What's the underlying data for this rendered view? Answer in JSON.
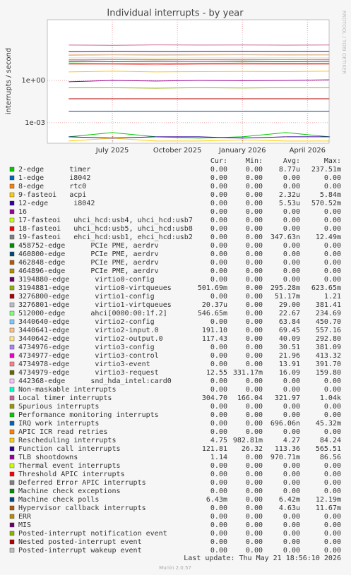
{
  "chart_data": {
    "type": "line",
    "title": "Individual interrupts - by year",
    "y_label": "interrupts / second",
    "side_note": "RRDTOOL / TOBI OETIKER",
    "log_y": true,
    "grid": true,
    "x": [
      "2025-05",
      "2025-07",
      "2025-09",
      "2025-11",
      "2026-01",
      "2026-03",
      "2026-05"
    ],
    "xlim": [
      "2025-04",
      "2026-05"
    ],
    "xticks": [
      {
        "value": "2025-07",
        "label": "July 2025"
      },
      {
        "value": "2025-10",
        "label": "October 2025"
      },
      {
        "value": "2026-01",
        "label": "January 2026"
      },
      {
        "value": "2026-04",
        "label": "April 2026"
      }
    ],
    "ylim": [
      3.5e-05,
      20000
    ],
    "yticks": [
      {
        "value": 0.001,
        "label": "1e-03"
      },
      {
        "value": 1,
        "label": "1e+00"
      }
    ],
    "legend_headers": [
      "Cur:",
      "Min:",
      "Avg:",
      "Max:"
    ],
    "series": [
      {
        "name": "2-edge      timer",
        "color": "#00cc00",
        "values": [
          0.0001,
          0.0002,
          0.0001,
          8e-05,
          0.0001,
          0.0002,
          0.0001
        ],
        "stats": [
          "0.00",
          "0.00",
          "8.77u",
          "237.51m"
        ]
      },
      {
        "name": "1-edge      i8042",
        "color": "#0066b3",
        "values": [
          null,
          null,
          null,
          null,
          null,
          null,
          null
        ],
        "stats": [
          "0.00",
          "0.00",
          "0.00",
          "0.00"
        ]
      },
      {
        "name": "8-edge      rtc0",
        "color": "#ff8000",
        "values": [
          null,
          null,
          null,
          null,
          null,
          null,
          null
        ],
        "stats": [
          "0.00",
          "0.00",
          "0.00",
          "0.00"
        ]
      },
      {
        "name": "9-fasteoi   acpi",
        "color": "#ffcc00",
        "values": [
          5e-05,
          8e-05,
          5e-05,
          5e-05,
          6e-05,
          5e-05,
          5e-05
        ],
        "stats": [
          "0.00",
          "0.00",
          "2.32u",
          "5.84m"
        ]
      },
      {
        "name": "12-edge      i8042",
        "color": "#330099",
        "values": [
          0.0001,
          8e-05,
          0.0001,
          0.0001,
          8e-05,
          0.0001,
          0.0001
        ],
        "stats": [
          "0.00",
          "0.00",
          "5.53u",
          "570.52m"
        ]
      },
      {
        "name": "16",
        "color": "#990099",
        "values": [
          null,
          null,
          null,
          null,
          null,
          null,
          null
        ],
        "stats": [
          "0.00",
          "0.00",
          "0.00",
          "0.00"
        ]
      },
      {
        "name": "17-fasteoi   uhci_hcd:usb4, uhci_hcd:usb7",
        "color": "#ccff00",
        "values": [
          null,
          null,
          null,
          null,
          null,
          null,
          null
        ],
        "stats": [
          "0.00",
          "0.00",
          "0.00",
          "0.00"
        ]
      },
      {
        "name": "18-fasteoi   uhci_hcd:usb5, uhci_hcd:usb8",
        "color": "#ff0000",
        "values": [
          null,
          null,
          null,
          null,
          null,
          null,
          null
        ],
        "stats": [
          "0.00",
          "0.00",
          "0.00",
          "0.00"
        ]
      },
      {
        "name": "19-fasteoi   ehci_hcd:usb1, ehci_hcd:usb2",
        "color": "#808080",
        "values": [
          null,
          5e-05,
          null,
          null,
          5e-05,
          null,
          null
        ],
        "stats": [
          "0.00",
          "0.00",
          "347.63n",
          "12.49m"
        ]
      },
      {
        "name": "458752-edge      PCIe PME, aerdrv",
        "color": "#008f00",
        "values": [
          null,
          null,
          null,
          null,
          null,
          null,
          null
        ],
        "stats": [
          "0.00",
          "0.00",
          "0.00",
          "0.00"
        ]
      },
      {
        "name": "460800-edge      PCIe PME, aerdrv",
        "color": "#00487d",
        "values": [
          null,
          null,
          null,
          null,
          null,
          null,
          null
        ],
        "stats": [
          "0.00",
          "0.00",
          "0.00",
          "0.00"
        ]
      },
      {
        "name": "462848-edge      PCIe PME, aerdrv",
        "color": "#b35a00",
        "values": [
          null,
          null,
          null,
          null,
          null,
          null,
          null
        ],
        "stats": [
          "0.00",
          "0.00",
          "0.00",
          "0.00"
        ]
      },
      {
        "name": "464896-edge      PCIe PME, aerdrv",
        "color": "#b38f00",
        "values": [
          null,
          null,
          null,
          null,
          null,
          null,
          null
        ],
        "stats": [
          "0.00",
          "0.00",
          "0.00",
          "0.00"
        ]
      },
      {
        "name": "3194880-edge      virtio0-config",
        "color": "#6b006b",
        "values": [
          null,
          null,
          null,
          null,
          null,
          null,
          null
        ],
        "stats": [
          "0.00",
          "0.00",
          "0.00",
          "0.00"
        ]
      },
      {
        "name": "3194881-edge      virtio0-virtqueues",
        "color": "#8fb300",
        "values": [
          0.3,
          0.3,
          0.28,
          0.3,
          0.29,
          0.3,
          0.3
        ],
        "stats": [
          "501.69m",
          "0.00",
          "295.28m",
          "623.65m"
        ]
      },
      {
        "name": "3276800-edge      virtio1-config",
        "color": "#b30000",
        "values": [
          0.05,
          0.05,
          0.05,
          0.05,
          0.05,
          0.05,
          0.05
        ],
        "stats": [
          "0.00",
          "0.00",
          "51.17m",
          "1.21"
        ]
      },
      {
        "name": "3276801-edge      virtio1-virtqueues",
        "color": "#bebebe",
        "values": [
          25,
          30,
          28,
          30,
          29,
          30,
          29
        ],
        "stats": [
          "20.37u",
          "0.00",
          "29.00",
          "381.41"
        ]
      },
      {
        "name": "512000-edge      ahci[0000:00:1f.2]",
        "color": "#80ff80",
        "values": [
          20,
          22,
          23,
          22,
          24,
          22,
          23
        ],
        "stats": [
          "546.65m",
          "0.00",
          "22.67",
          "234.69"
        ]
      },
      {
        "name": "3440640-edge      virtio2-config",
        "color": "#80c9ff",
        "values": [
          60,
          65,
          62,
          64,
          66,
          63,
          64
        ],
        "stats": [
          "0.00",
          "0.00",
          "63.84",
          "450.70"
        ]
      },
      {
        "name": "3440641-edge      virtio2-input.0",
        "color": "#ffc080",
        "values": [
          70,
          68,
          70,
          69,
          70,
          68,
          69
        ],
        "stats": [
          "191.10",
          "0.00",
          "69.45",
          "557.16"
        ]
      },
      {
        "name": "3440642-edge      virtio2-output.0",
        "color": "#ffe680",
        "values": [
          40,
          41,
          39,
          40,
          40,
          41,
          40
        ],
        "stats": [
          "117.43",
          "0.00",
          "40.09",
          "292.80"
        ]
      },
      {
        "name": "4734976-edge      virtio3-config",
        "color": "#aa80ff",
        "values": [
          30,
          31,
          30,
          30,
          31,
          30,
          31
        ],
        "stats": [
          "0.00",
          "0.00",
          "30.51",
          "381.09"
        ]
      },
      {
        "name": "4734977-edge      virtio3-control",
        "color": "#ee00cc",
        "values": [
          22,
          21,
          22,
          22,
          22,
          21,
          22
        ],
        "stats": [
          "0.00",
          "0.00",
          "21.96",
          "413.32"
        ]
      },
      {
        "name": "4734978-edge      virtio3-event",
        "color": "#ff8080",
        "values": [
          14,
          14,
          13,
          14,
          14,
          14,
          14
        ],
        "stats": [
          "0.00",
          "0.00",
          "13.91",
          "391.70"
        ]
      },
      {
        "name": "4734979-edge      virtio3-request",
        "color": "#666600",
        "values": [
          16,
          15,
          16,
          16,
          17,
          16,
          16
        ],
        "stats": [
          "12.55",
          "331.17m",
          "16.09",
          "159.80"
        ]
      },
      {
        "name": "442368-edge      snd_hda_intel:card0",
        "color": "#ffbfff",
        "values": [
          null,
          null,
          null,
          null,
          null,
          null,
          null
        ],
        "stats": [
          "0.00",
          "0.00",
          "0.00",
          "0.00"
        ]
      },
      {
        "name": "Non-maskable interrupts",
        "color": "#00ffcc",
        "values": [
          null,
          null,
          null,
          null,
          null,
          null,
          null
        ],
        "stats": [
          "0.00",
          "0.00",
          "0.00",
          "0.00"
        ]
      },
      {
        "name": "Local timer interrupts",
        "color": "#cc6699",
        "values": [
          320,
          310,
          330,
          320,
          325,
          315,
          322
        ],
        "stats": [
          "304.70",
          "166.04",
          "321.97",
          "1.04k"
        ]
      },
      {
        "name": "Spurious interrupts",
        "color": "#999900",
        "values": [
          null,
          null,
          null,
          null,
          null,
          null,
          null
        ],
        "stats": [
          "0.00",
          "0.00",
          "0.00",
          "0.00"
        ]
      },
      {
        "name": "Performance monitoring interrupts",
        "color": "#00cc00",
        "values": [
          null,
          null,
          null,
          null,
          null,
          null,
          null
        ],
        "stats": [
          "0.00",
          "0.00",
          "0.00",
          "0.00"
        ]
      },
      {
        "name": "IRQ work interrupts",
        "color": "#0066b3",
        "values": [
          0.0001,
          null,
          0.0001,
          null,
          0.0001,
          null,
          0.0001
        ],
        "stats": [
          "0.00",
          "0.00",
          "696.06n",
          "45.32m"
        ]
      },
      {
        "name": "APIC ICR read retries",
        "color": "#ff8000",
        "values": [
          null,
          null,
          null,
          null,
          null,
          null,
          null
        ],
        "stats": [
          "0.00",
          "0.00",
          "0.00",
          "0.00"
        ]
      },
      {
        "name": "Rescheduling interrupts",
        "color": "#ffcc00",
        "values": [
          4,
          4.5,
          4,
          4.2,
          4.3,
          4.2,
          4.5
        ],
        "stats": [
          "4.75",
          "982.81m",
          "4.27",
          "84.24"
        ]
      },
      {
        "name": "Function call interrupts",
        "color": "#330099",
        "values": [
          110,
          115,
          112,
          113,
          114,
          113,
          116
        ],
        "stats": [
          "121.81",
          "26.32",
          "113.36",
          "565.51"
        ]
      },
      {
        "name": "TLB shootdowns",
        "color": "#990099",
        "values": [
          0.8,
          1,
          0.9,
          1,
          0.95,
          1,
          1.1
        ],
        "stats": [
          "1.14",
          "0.00",
          "970.71m",
          "86.56"
        ]
      },
      {
        "name": "Thermal event interrupts",
        "color": "#ccff00",
        "values": [
          null,
          null,
          null,
          null,
          null,
          null,
          null
        ],
        "stats": [
          "0.00",
          "0.00",
          "0.00",
          "0.00"
        ]
      },
      {
        "name": "Threshold APIC interrupts",
        "color": "#ff0000",
        "values": [
          null,
          null,
          null,
          null,
          null,
          null,
          null
        ],
        "stats": [
          "0.00",
          "0.00",
          "0.00",
          "0.00"
        ]
      },
      {
        "name": "Deferred Error APIC interrupts",
        "color": "#808080",
        "values": [
          null,
          null,
          null,
          null,
          null,
          null,
          null
        ],
        "stats": [
          "0.00",
          "0.00",
          "0.00",
          "0.00"
        ]
      },
      {
        "name": "Machine check exceptions",
        "color": "#008f00",
        "values": [
          null,
          null,
          null,
          null,
          null,
          null,
          null
        ],
        "stats": [
          "0.00",
          "0.00",
          "0.00",
          "0.00"
        ]
      },
      {
        "name": "Machine check polls",
        "color": "#00487d",
        "values": [
          0.0064,
          0.0064,
          0.0064,
          0.0064,
          0.0064,
          0.0064,
          0.0064
        ],
        "stats": [
          "6.43m",
          "0.00",
          "6.42m",
          "12.19m"
        ]
      },
      {
        "name": "Hypervisor callback interrupts",
        "color": "#b35a00",
        "values": [
          null,
          0.0001,
          null,
          null,
          null,
          0.0001,
          null
        ],
        "stats": [
          "0.00",
          "0.00",
          "4.63u",
          "11.67m"
        ]
      },
      {
        "name": "ERR",
        "color": "#b38f00",
        "values": [
          null,
          null,
          null,
          null,
          null,
          null,
          null
        ],
        "stats": [
          "0.00",
          "0.00",
          "0.00",
          "0.00"
        ]
      },
      {
        "name": "MIS",
        "color": "#6b006b",
        "values": [
          null,
          null,
          null,
          null,
          null,
          null,
          null
        ],
        "stats": [
          "0.00",
          "0.00",
          "0.00",
          "0.00"
        ]
      },
      {
        "name": "Posted-interrupt notification event",
        "color": "#8fb300",
        "values": [
          null,
          null,
          null,
          null,
          null,
          null,
          null
        ],
        "stats": [
          "0.00",
          "0.00",
          "0.00",
          "0.00"
        ]
      },
      {
        "name": "Nested posted-interrupt event",
        "color": "#b30000",
        "values": [
          null,
          null,
          null,
          null,
          null,
          null,
          null
        ],
        "stats": [
          "0.00",
          "0.00",
          "0.00",
          "0.00"
        ]
      },
      {
        "name": "Posted-interrupt wakeup event",
        "color": "#bebebe",
        "values": [
          null,
          null,
          null,
          null,
          null,
          null,
          null
        ],
        "stats": [
          "0.00",
          "0.00",
          "0.00",
          "0.00"
        ]
      }
    ]
  },
  "footer": {
    "last_update": "Last update: Thu May 21 18:56:10 2026",
    "version": "Munin 2.0.57"
  }
}
